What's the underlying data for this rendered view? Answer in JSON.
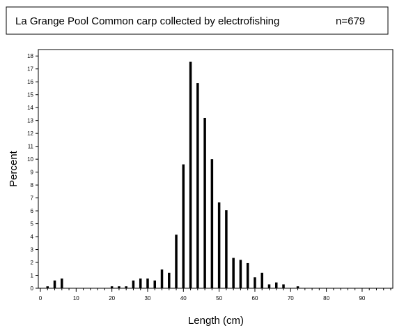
{
  "chart_data": {
    "type": "bar",
    "title": "La Grange Pool Common carp collected by electrofishing",
    "sample_size_label": "n=679",
    "xlabel": "Length (cm)",
    "ylabel": "Percent",
    "xlim": [
      0,
      98
    ],
    "ylim": [
      0,
      18.5
    ],
    "x_ticks": [
      0,
      10,
      20,
      30,
      40,
      50,
      60,
      70,
      80,
      90
    ],
    "x_minor_step": 2,
    "y_ticks": [
      0,
      1,
      2,
      3,
      4,
      5,
      6,
      7,
      8,
      9,
      10,
      11,
      12,
      13,
      14,
      15,
      16,
      17,
      18
    ],
    "grid": false,
    "bar_color": "#000000",
    "x": [
      2,
      4,
      6,
      20,
      22,
      24,
      26,
      28,
      30,
      32,
      34,
      36,
      38,
      40,
      42,
      44,
      46,
      48,
      50,
      52,
      54,
      56,
      58,
      60,
      62,
      64,
      66,
      68,
      72
    ],
    "values": [
      0.15,
      0.6,
      0.75,
      0.15,
      0.15,
      0.15,
      0.6,
      0.75,
      0.75,
      0.6,
      1.45,
      1.2,
      4.15,
      9.6,
      17.55,
      15.9,
      13.2,
      10.0,
      6.65,
      6.05,
      2.35,
      2.2,
      1.95,
      0.85,
      1.2,
      0.3,
      0.45,
      0.3,
      0.15
    ]
  }
}
